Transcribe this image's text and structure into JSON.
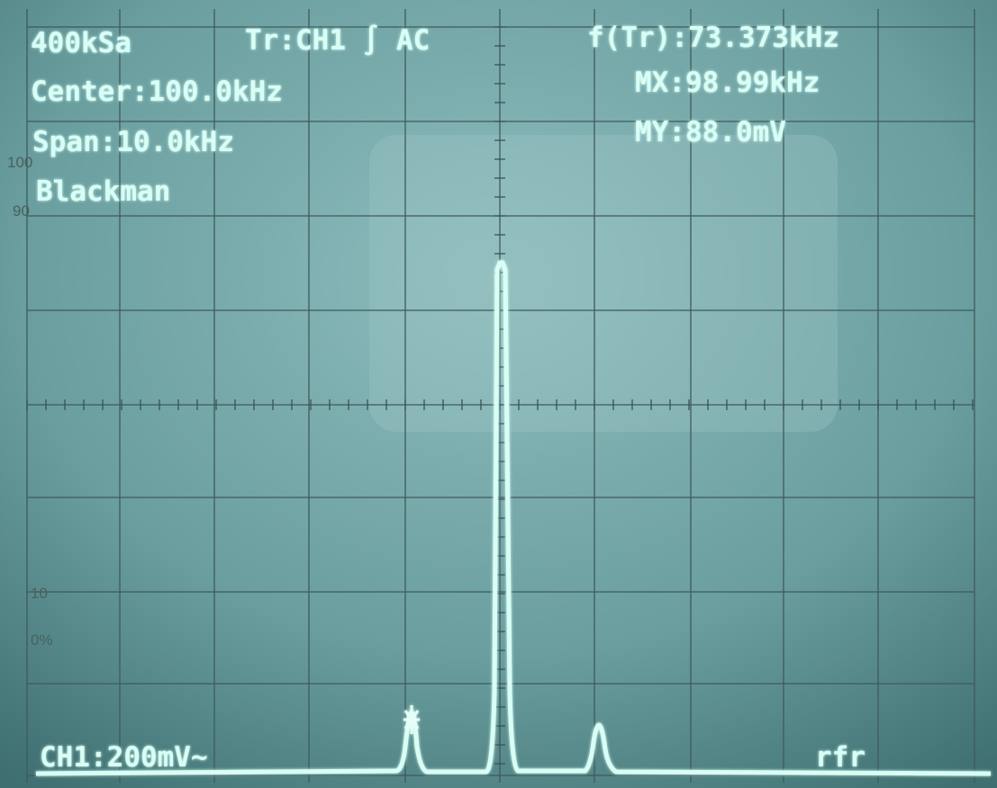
{
  "screen": {
    "readouts": {
      "sample_rate": "400kSa",
      "trigger": "Tr:CH1 ∫ AC",
      "trigger_freq": "f(Tr):73.373kHz",
      "center": "Center:100.0kHz",
      "marker_x": "MX:98.99kHz",
      "span": "Span:10.0kHz",
      "marker_y": "MY:88.0mV",
      "window": "Blackman",
      "channel": "CH1:200mV~",
      "mode": "rfr"
    },
    "graticule_labels": {
      "top": "100",
      "upper": "90",
      "lower": "10",
      "bottom": "0%"
    }
  }
}
